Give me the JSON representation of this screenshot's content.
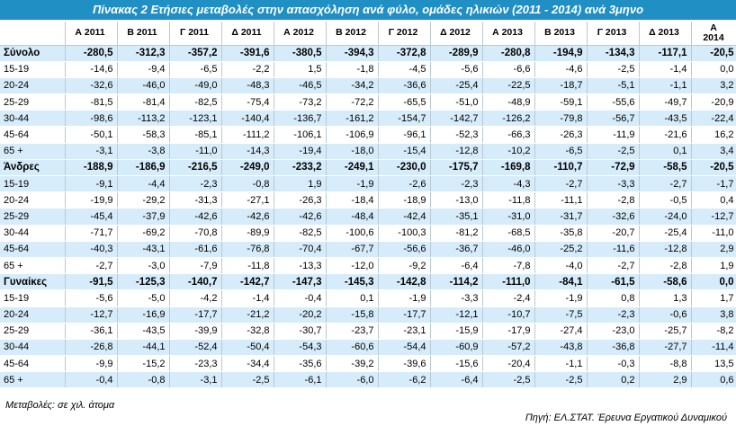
{
  "title": "Πίνακας 2 Ετήσιες μεταβολές στην απασχόληση  ανά φύλο, ομάδες ηλικιών (2011 - 2014) ανά 3μηνο",
  "columns": [
    "Α 2011",
    "Β 2011",
    "Γ 2011",
    "Δ 2011",
    "Α 2012",
    "Β 2012",
    "Γ 2012",
    "Δ 2012",
    "Α 2013",
    "Β 2013",
    "Γ 2013",
    "Δ 2013",
    "Α 2014"
  ],
  "rows": [
    {
      "label": "Σύνολο",
      "bold": true,
      "values": [
        "-280,5",
        "-312,3",
        "-357,2",
        "-391,6",
        "-380,5",
        "-394,3",
        "-372,8",
        "-289,9",
        "-280,8",
        "-194,9",
        "-134,3",
        "-117,1",
        "-20,5"
      ]
    },
    {
      "label": "15-19",
      "values": [
        "-14,6",
        "-9,4",
        "-6,5",
        "-2,2",
        "1,5",
        "-1,8",
        "-4,5",
        "-5,6",
        "-6,6",
        "-4,6",
        "-2,5",
        "-1,4",
        "0,0"
      ]
    },
    {
      "label": "20-24",
      "values": [
        "-32,6",
        "-46,0",
        "-49,0",
        "-48,3",
        "-46,5",
        "-34,2",
        "-36,6",
        "-25,4",
        "-22,5",
        "-18,7",
        "-5,1",
        "-1,1",
        "3,2"
      ]
    },
    {
      "label": "25-29",
      "values": [
        "-81,5",
        "-81,4",
        "-82,5",
        "-75,4",
        "-73,2",
        "-72,2",
        "-65,5",
        "-51,0",
        "-48,9",
        "-59,1",
        "-55,6",
        "-49,7",
        "-20,9"
      ]
    },
    {
      "label": "30-44",
      "values": [
        "-98,6",
        "-113,2",
        "-123,1",
        "-140,4",
        "-136,7",
        "-161,2",
        "-154,7",
        "-142,7",
        "-126,2",
        "-79,8",
        "-56,7",
        "-43,5",
        "-22,4"
      ]
    },
    {
      "label": "45-64",
      "values": [
        "-50,1",
        "-58,3",
        "-85,1",
        "-111,2",
        "-106,1",
        "-106,9",
        "-96,1",
        "-52,3",
        "-66,3",
        "-26,3",
        "-11,9",
        "-21,6",
        "16,2"
      ]
    },
    {
      "label": "65 +",
      "values": [
        "-3,1",
        "-3,8",
        "-11,0",
        "-14,3",
        "-19,4",
        "-18,0",
        "-15,4",
        "-12,8",
        "-10,2",
        "-6,5",
        "-2,5",
        "0,1",
        "3,4"
      ]
    },
    {
      "label": "Άνδρες",
      "bold": true,
      "values": [
        "-188,9",
        "-186,9",
        "-216,5",
        "-249,0",
        "-233,2",
        "-249,1",
        "-230,0",
        "-175,7",
        "-169,8",
        "-110,7",
        "-72,9",
        "-58,5",
        "-20,5"
      ]
    },
    {
      "label": "15-19",
      "values": [
        "-9,1",
        "-4,4",
        "-2,3",
        "-0,8",
        "1,9",
        "-1,9",
        "-2,6",
        "-2,3",
        "-4,3",
        "-2,7",
        "-3,3",
        "-2,7",
        "-1,7"
      ]
    },
    {
      "label": "20-24",
      "values": [
        "-19,9",
        "-29,2",
        "-31,3",
        "-27,1",
        "-26,3",
        "-18,4",
        "-18,9",
        "-13,0",
        "-11,8",
        "-11,1",
        "-2,8",
        "-0,5",
        "0,4"
      ]
    },
    {
      "label": "25-29",
      "values": [
        "-45,4",
        "-37,9",
        "-42,6",
        "-42,6",
        "-42,6",
        "-48,4",
        "-42,4",
        "-35,1",
        "-31,0",
        "-31,7",
        "-32,6",
        "-24,0",
        "-12,7"
      ]
    },
    {
      "label": "30-44",
      "values": [
        "-71,7",
        "-69,2",
        "-70,8",
        "-89,9",
        "-82,5",
        "-100,6",
        "-100,3",
        "-81,2",
        "-68,5",
        "-35,8",
        "-20,7",
        "-25,4",
        "-11,0"
      ]
    },
    {
      "label": "45-64",
      "values": [
        "-40,3",
        "-43,1",
        "-61,6",
        "-76,8",
        "-70,4",
        "-67,7",
        "-56,6",
        "-36,7",
        "-46,0",
        "-25,2",
        "-11,6",
        "-12,8",
        "2,9"
      ]
    },
    {
      "label": "65 +",
      "values": [
        "-2,7",
        "-3,0",
        "-7,9",
        "-11,8",
        "-13,3",
        "-12,0",
        "-9,2",
        "-6,4",
        "-7,8",
        "-4,0",
        "-2,7",
        "-2,8",
        "1,9"
      ]
    },
    {
      "label": "Γυναίκες",
      "bold": true,
      "values": [
        "-91,5",
        "-125,3",
        "-140,7",
        "-142,7",
        "-147,3",
        "-145,3",
        "-142,8",
        "-114,2",
        "-111,0",
        "-84,1",
        "-61,5",
        "-58,6",
        "0,0"
      ]
    },
    {
      "label": "15-19",
      "values": [
        "-5,6",
        "-5,0",
        "-4,2",
        "-1,4",
        "-0,4",
        "0,1",
        "-1,9",
        "-3,3",
        "-2,4",
        "-1,9",
        "0,8",
        "1,3",
        "1,7"
      ]
    },
    {
      "label": "20-24",
      "values": [
        "-12,7",
        "-16,9",
        "-17,7",
        "-21,2",
        "-20,2",
        "-15,8",
        "-17,7",
        "-12,1",
        "-10,7",
        "-7,5",
        "-2,3",
        "-0,6",
        "3,8"
      ]
    },
    {
      "label": "25-29",
      "values": [
        "-36,1",
        "-43,5",
        "-39,9",
        "-32,8",
        "-30,7",
        "-23,7",
        "-23,1",
        "-15,9",
        "-17,9",
        "-27,4",
        "-23,0",
        "-25,7",
        "-8,2"
      ]
    },
    {
      "label": "30-44",
      "values": [
        "-26,8",
        "-44,1",
        "-52,4",
        "-50,4",
        "-54,3",
        "-60,6",
        "-54,4",
        "-60,9",
        "-57,2",
        "-43,8",
        "-36,8",
        "-27,7",
        "-11,4"
      ]
    },
    {
      "label": "45-64",
      "values": [
        "-9,9",
        "-15,2",
        "-23,3",
        "-34,4",
        "-35,6",
        "-39,2",
        "-39,6",
        "-15,6",
        "-20,4",
        "-1,1",
        "-0,3",
        "-8,8",
        "13,5"
      ]
    },
    {
      "label": "65 +",
      "values": [
        "-0,4",
        "-0,8",
        "-3,1",
        "-2,5",
        "-6,1",
        "-6,0",
        "-6,2",
        "-6,4",
        "-2,5",
        "-2,5",
        "0,2",
        "2,9",
        "0,6"
      ]
    }
  ],
  "footer_note": "Μεταβολές: σε χιλ. άτομα",
  "source": "Πηγή: ΕΛ.ΣΤΑΤ. Έρευνα Εργατικού Δυναμικού"
}
